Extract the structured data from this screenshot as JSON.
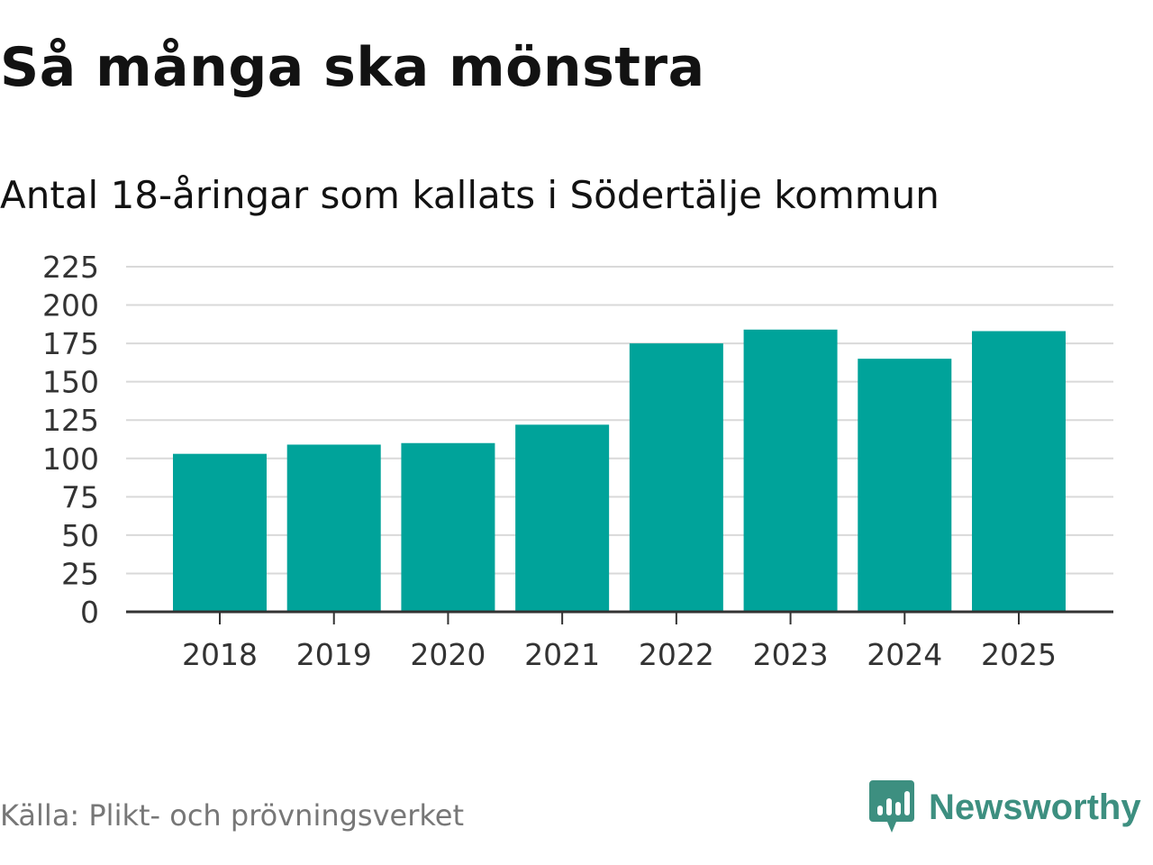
{
  "chart_data": {
    "type": "bar",
    "title": "Så många ska mönstra",
    "subtitle": "Antal 18-åringar som kallats i Södertälje kommun",
    "categories": [
      "2018",
      "2019",
      "2020",
      "2021",
      "2022",
      "2023",
      "2024",
      "2025"
    ],
    "values": [
      103,
      109,
      110,
      122,
      175,
      184,
      165,
      183
    ],
    "xlabel": "",
    "ylabel": "",
    "ylim": [
      0,
      225
    ],
    "yticks": [
      0,
      25,
      50,
      75,
      100,
      125,
      150,
      175,
      200,
      225
    ],
    "grid": true,
    "bar_color": "#00a39a",
    "grid_color": "#d9d9d9",
    "axis_color": "#333333"
  },
  "source": "Källa: Plikt- och prövningsverket",
  "brand": {
    "name": "Newsworthy",
    "icon": "newsworthy-logo-icon",
    "color": "#3d8f80"
  }
}
